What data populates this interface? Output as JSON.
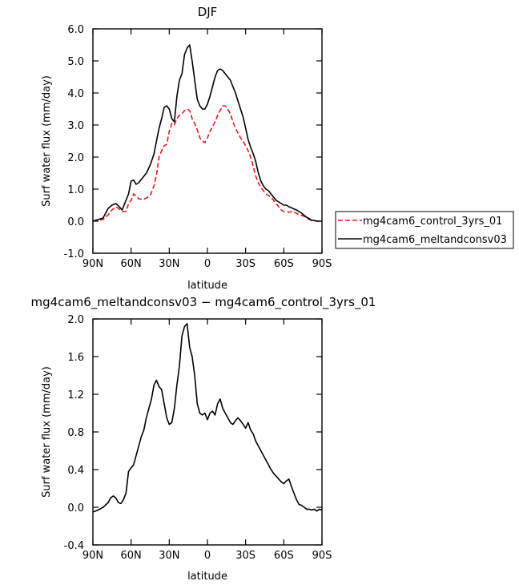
{
  "chart_data": [
    {
      "type": "line",
      "title": "DJF",
      "xlabel": "latitude",
      "ylabel": "Surf water flux (mm/day)",
      "xlim": [
        90,
        -90
      ],
      "ylim": [
        -1.0,
        6.0
      ],
      "yticks": [
        -1.0,
        0.0,
        1.0,
        2.0,
        3.0,
        4.0,
        5.0,
        6.0
      ],
      "ytick_labels": [
        "-1.0",
        "0.0",
        "1.0",
        "2.0",
        "3.0",
        "4.0",
        "5.0",
        "6.0"
      ],
      "xticks": [
        90,
        60,
        30,
        0,
        -30,
        -60,
        -90
      ],
      "xtick_labels": [
        "90N",
        "60N",
        "30N",
        "0",
        "30S",
        "60S",
        "90S"
      ],
      "grid": false,
      "legend_position": "right",
      "series": [
        {
          "name": "mg4cam6_control_3yrs_01",
          "color": "#e8161b",
          "dash": "dashed",
          "x": [
            90,
            86,
            82,
            78,
            75,
            72,
            70,
            67,
            64,
            62,
            60,
            58,
            56,
            54,
            51,
            48,
            45,
            42,
            40,
            38,
            36,
            34,
            32,
            30,
            28,
            26,
            24,
            22,
            20,
            18,
            16,
            14,
            12,
            10,
            8,
            6,
            4,
            2,
            0,
            -2,
            -4,
            -6,
            -8,
            -10,
            -12,
            -14,
            -16,
            -18,
            -20,
            -22,
            -24,
            -26,
            -28,
            -30,
            -32,
            -34,
            -36,
            -38,
            -40,
            -42,
            -44,
            -46,
            -48,
            -50,
            -52,
            -54,
            -56,
            -58,
            -60,
            -62,
            -64,
            -66,
            -68,
            -70,
            -72,
            -74,
            -76,
            -78,
            -80,
            -82,
            -84,
            -86,
            -88,
            -90
          ],
          "y": [
            0.0,
            0.03,
            0.05,
            0.2,
            0.35,
            0.45,
            0.4,
            0.3,
            0.3,
            0.55,
            0.65,
            0.85,
            0.78,
            0.7,
            0.68,
            0.72,
            0.8,
            1.1,
            1.45,
            2.0,
            2.2,
            2.35,
            2.4,
            2.8,
            3.05,
            3.0,
            3.2,
            3.3,
            3.35,
            3.45,
            3.5,
            3.45,
            3.2,
            3.05,
            2.85,
            2.6,
            2.5,
            2.45,
            2.6,
            2.8,
            2.95,
            3.1,
            3.3,
            3.45,
            3.6,
            3.6,
            3.5,
            3.35,
            3.1,
            2.9,
            2.75,
            2.6,
            2.5,
            2.35,
            2.2,
            2.0,
            1.7,
            1.4,
            1.2,
            1.05,
            0.95,
            0.85,
            0.8,
            0.75,
            0.65,
            0.55,
            0.45,
            0.35,
            0.3,
            0.3,
            0.28,
            0.3,
            0.28,
            0.25,
            0.2,
            0.18,
            0.15,
            0.1,
            0.05,
            0.02,
            0.02,
            0.0,
            0.0,
            0.0
          ]
        },
        {
          "name": "mg4cam6_meltandconsv03",
          "color": "#000000",
          "dash": "solid",
          "x": [
            90,
            86,
            82,
            78,
            75,
            72,
            70,
            67,
            64,
            62,
            60,
            58,
            56,
            54,
            51,
            48,
            45,
            42,
            40,
            38,
            36,
            34,
            32,
            30,
            28,
            26,
            24,
            22,
            20,
            18,
            16,
            14,
            12,
            10,
            8,
            6,
            4,
            2,
            0,
            -2,
            -4,
            -6,
            -8,
            -10,
            -12,
            -14,
            -16,
            -18,
            -20,
            -22,
            -24,
            -26,
            -28,
            -30,
            -32,
            -34,
            -36,
            -38,
            -40,
            -42,
            -44,
            -46,
            -48,
            -50,
            -52,
            -54,
            -56,
            -58,
            -60,
            -62,
            -64,
            -66,
            -68,
            -70,
            -72,
            -74,
            -76,
            -78,
            -80,
            -82,
            -84,
            -86,
            -88,
            -90
          ],
          "y": [
            0.0,
            0.05,
            0.1,
            0.4,
            0.5,
            0.55,
            0.48,
            0.35,
            0.65,
            0.85,
            1.25,
            1.28,
            1.15,
            1.2,
            1.35,
            1.5,
            1.75,
            2.1,
            2.5,
            2.9,
            3.2,
            3.55,
            3.6,
            3.5,
            3.2,
            3.1,
            3.9,
            4.4,
            4.6,
            5.2,
            5.4,
            5.5,
            5.0,
            4.4,
            3.8,
            3.6,
            3.5,
            3.5,
            3.65,
            3.9,
            4.2,
            4.5,
            4.7,
            4.75,
            4.7,
            4.6,
            4.5,
            4.4,
            4.2,
            4.0,
            3.75,
            3.5,
            3.25,
            2.9,
            2.55,
            2.3,
            2.1,
            1.85,
            1.5,
            1.25,
            1.1,
            1.0,
            0.95,
            0.85,
            0.75,
            0.65,
            0.6,
            0.55,
            0.5,
            0.5,
            0.45,
            0.42,
            0.38,
            0.35,
            0.3,
            0.25,
            0.18,
            0.12,
            0.08,
            0.03,
            0.02,
            0.0,
            0.0,
            0.0
          ]
        }
      ]
    },
    {
      "type": "line",
      "title": "mg4cam6_meltandconsv03 − mg4cam6_control_3yrs_01",
      "xlabel": "latitude",
      "ylabel": "Surf water flux (mm/day)",
      "xlim": [
        90,
        -90
      ],
      "ylim": [
        -0.4,
        2.0
      ],
      "yticks": [
        -0.4,
        0.0,
        0.4,
        0.8,
        1.2,
        1.6,
        2.0
      ],
      "ytick_labels": [
        "-0.4",
        "0.0",
        "0.4",
        "0.8",
        "1.2",
        "1.6",
        "2.0"
      ],
      "xticks": [
        90,
        60,
        30,
        0,
        -30,
        -60,
        -90
      ],
      "xtick_labels": [
        "90N",
        "60N",
        "30N",
        "0",
        "30S",
        "60S",
        "90S"
      ],
      "grid": false,
      "series": [
        {
          "color": "#000000",
          "dash": "solid",
          "x": [
            90,
            86,
            82,
            78,
            76,
            74,
            72,
            70,
            68,
            66,
            64,
            62,
            60,
            58,
            56,
            54,
            52,
            50,
            48,
            46,
            44,
            42,
            40,
            38,
            36,
            34,
            32,
            30,
            28,
            26,
            24,
            22,
            20,
            18,
            16,
            14,
            12,
            10,
            8,
            6,
            4,
            2,
            0,
            -2,
            -4,
            -6,
            -8,
            -10,
            -12,
            -14,
            -16,
            -18,
            -20,
            -22,
            -24,
            -26,
            -28,
            -30,
            -32,
            -34,
            -36,
            -38,
            -40,
            -42,
            -44,
            -46,
            -48,
            -50,
            -52,
            -54,
            -56,
            -58,
            -60,
            -62,
            -64,
            -66,
            -68,
            -70,
            -72,
            -74,
            -76,
            -78,
            -80,
            -82,
            -84,
            -86,
            -88,
            -90
          ],
          "y": [
            -0.05,
            -0.03,
            0.0,
            0.05,
            0.1,
            0.12,
            0.1,
            0.05,
            0.04,
            0.08,
            0.15,
            0.38,
            0.42,
            0.45,
            0.55,
            0.65,
            0.75,
            0.82,
            0.95,
            1.05,
            1.15,
            1.3,
            1.35,
            1.28,
            1.25,
            1.1,
            0.95,
            0.88,
            0.9,
            1.05,
            1.3,
            1.5,
            1.82,
            1.92,
            1.95,
            1.7,
            1.6,
            1.4,
            1.1,
            1.0,
            0.98,
            1.0,
            0.93,
            1.0,
            1.02,
            0.98,
            1.1,
            1.15,
            1.05,
            1.0,
            0.95,
            0.9,
            0.88,
            0.92,
            0.95,
            0.92,
            0.88,
            0.84,
            0.9,
            0.82,
            0.78,
            0.7,
            0.65,
            0.6,
            0.55,
            0.5,
            0.45,
            0.4,
            0.36,
            0.33,
            0.3,
            0.27,
            0.25,
            0.28,
            0.3,
            0.22,
            0.15,
            0.08,
            0.03,
            0.02,
            0.0,
            -0.02,
            -0.02,
            -0.03,
            -0.02,
            -0.04,
            -0.02,
            -0.03
          ]
        }
      ]
    }
  ]
}
